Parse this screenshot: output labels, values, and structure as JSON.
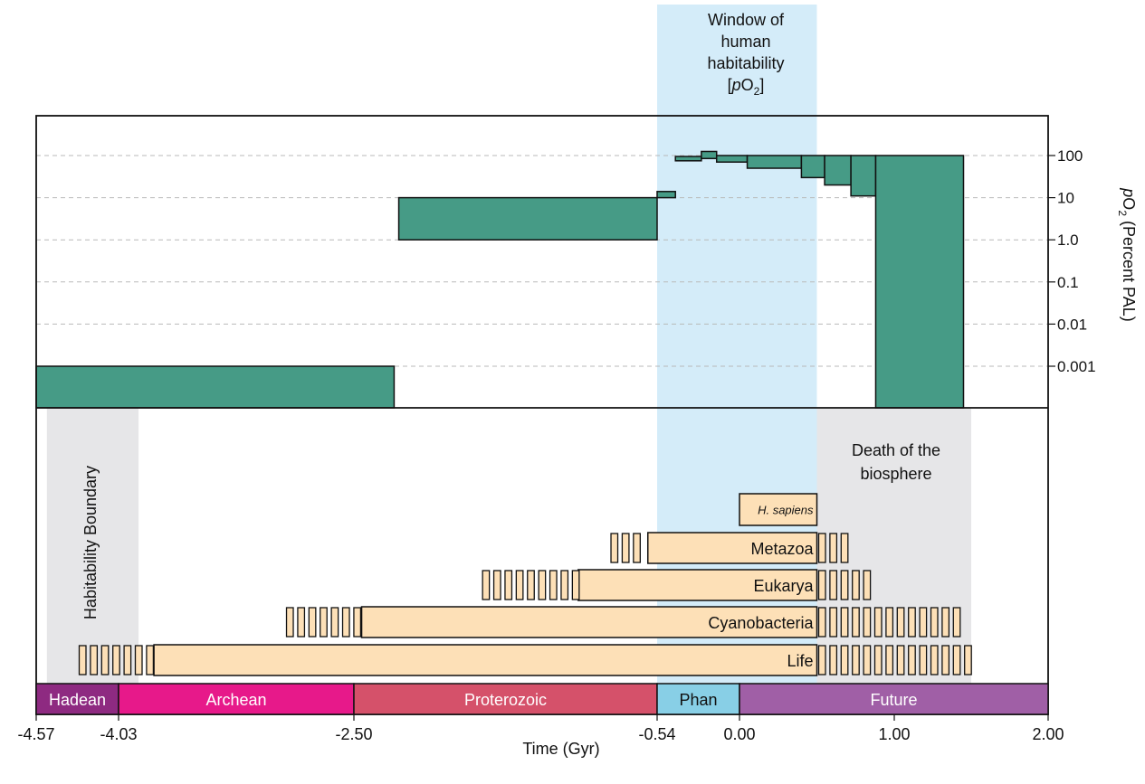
{
  "window_title": {
    "line1": "Window of",
    "line2": "human",
    "line3": "habitability",
    "line4_open": "[",
    "line4_p": "p",
    "line4_o": "O",
    "line4_sub": "2",
    "line4_close": "]"
  },
  "labels": {
    "habitability_boundary": "Habitability Boundary",
    "death_line1": "Death of the",
    "death_line2": "biosphere",
    "ylabel_p": "p",
    "ylabel_o": "O",
    "ylabel_sub": "2",
    "ylabel_rest": " (Percent PAL)",
    "xlabel": "Time (Gyr)"
  },
  "colors": {
    "o2_fill": "#469b86",
    "window": "#d4ecf9",
    "gray_band": "#e6e6e8",
    "bar_fill": "#fde0b7",
    "Hadean": "#8e2a81",
    "Archean": "#e7198a",
    "Proterozoic": "#d5516a",
    "Phan": "#88cfe6",
    "Future": "#a05fa6"
  },
  "chart_data": {
    "type": "bar",
    "x_axis": {
      "label": "Time (Gyr)",
      "range": [
        -4.57,
        2.0
      ],
      "ticks": [
        -4.57,
        -4.03,
        -2.5,
        -0.54,
        0.0,
        1.0,
        2.0
      ],
      "tick_labels": [
        "-4.57",
        "-4.03",
        "-2.50",
        "-0.54",
        "0.00",
        "1.00",
        "2.00"
      ]
    },
    "y_axis": {
      "label": "pO2 (Percent PAL)",
      "scale": "log",
      "ticks": [
        0.001,
        0.01,
        0.1,
        1.0,
        10,
        100
      ],
      "tick_labels": [
        "0.001",
        "0.01",
        "0.1",
        "1.0",
        "10",
        "100"
      ],
      "grid": true
    },
    "o2_ranges": [
      {
        "x0": -4.57,
        "x1": -2.24,
        "low": 1e-05,
        "high": 0.001
      },
      {
        "x0": -2.21,
        "x1": -0.54,
        "low": 1.0,
        "high": 10
      },
      {
        "x0": -0.54,
        "x1": -0.42,
        "low": 10,
        "high": 14
      },
      {
        "x0": -0.42,
        "x1": -0.25,
        "low": 75,
        "high": 95
      },
      {
        "x0": -0.25,
        "x1": -0.15,
        "low": 85,
        "high": 125
      },
      {
        "x0": -0.15,
        "x1": 0.05,
        "low": 70,
        "high": 100
      },
      {
        "x0": 0.05,
        "x1": 0.4,
        "low": 50,
        "high": 100
      },
      {
        "x0": 0.4,
        "x1": 0.55,
        "low": 30,
        "high": 100
      },
      {
        "x0": 0.55,
        "x1": 0.72,
        "low": 20,
        "high": 100
      },
      {
        "x0": 0.72,
        "x1": 0.88,
        "low": 11,
        "high": 100
      },
      {
        "x0": 0.88,
        "x1": 1.45,
        "low": 1e-05,
        "high": 100
      }
    ],
    "window_of_human_habitability": [
      -0.54,
      0.5
    ],
    "gray_bands": [
      {
        "name": "Habitability Boundary",
        "x0": -4.5,
        "x1": -3.9
      },
      {
        "name": "Death of the biosphere",
        "x0": 0.5,
        "x1": 1.5
      }
    ],
    "life_bars": [
      {
        "name": "H. sapiens",
        "start": 0.0,
        "end": 0.5,
        "uncertain_before": [],
        "uncertain_after": []
      },
      {
        "name": "Metazoa",
        "start": -0.6,
        "end": 0.5,
        "uncertain_before": [
          -0.85,
          -0.6
        ],
        "uncertain_after": [
          0.5,
          0.75
        ]
      },
      {
        "name": "Eukarya",
        "start": -1.05,
        "end": 0.5,
        "uncertain_before": [
          -1.68,
          -1.05
        ],
        "uncertain_after": [
          0.5,
          0.85
        ]
      },
      {
        "name": "Cyanobacteria",
        "start": -2.45,
        "end": 0.5,
        "uncertain_before": [
          -2.95,
          -2.45
        ],
        "uncertain_after": [
          0.5,
          1.42
        ]
      },
      {
        "name": "Life",
        "start": -3.8,
        "end": 0.5,
        "uncertain_before": [
          -3.7,
          -3.8
        ],
        "uncertain_after": [
          0.5,
          1.5
        ]
      }
    ],
    "eons": [
      {
        "name": "Hadean",
        "x0": -4.57,
        "x1": -4.03
      },
      {
        "name": "Archean",
        "x0": -4.03,
        "x1": -2.5
      },
      {
        "name": "Proterozoic",
        "x0": -2.5,
        "x1": -0.54
      },
      {
        "name": "Phan",
        "x0": -0.54,
        "x1": 0.0
      },
      {
        "name": "Future",
        "x0": 0.0,
        "x1": 2.0
      }
    ]
  }
}
